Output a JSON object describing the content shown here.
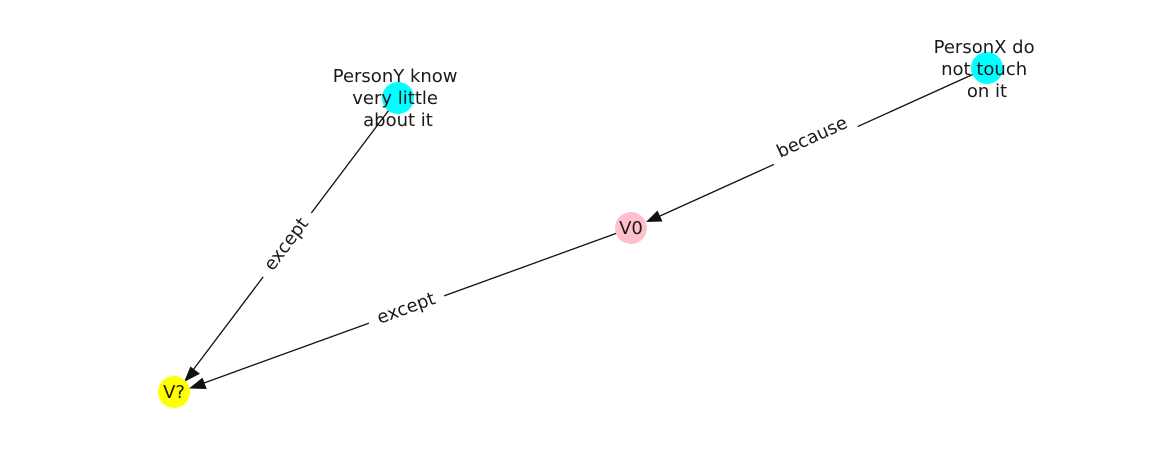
{
  "nodes": [
    {
      "id": "personx",
      "label_lines": [
        "PersonX do",
        "not touch",
        "on it"
      ],
      "color": "#00ffff"
    },
    {
      "id": "persony",
      "label_lines": [
        "PersonY know",
        "very little",
        "about it"
      ],
      "color": "#00ffff"
    },
    {
      "id": "v0",
      "label_lines": [
        "V0"
      ],
      "color": "#ffc0cb"
    },
    {
      "id": "vq",
      "label_lines": [
        "V?"
      ],
      "color": "#ffff00"
    }
  ],
  "edges": [
    {
      "from": "personx",
      "to": "v0",
      "label": "because"
    },
    {
      "from": "persony",
      "to": "vq",
      "label": "except"
    },
    {
      "from": "v0",
      "to": "vq",
      "label": "except"
    }
  ]
}
